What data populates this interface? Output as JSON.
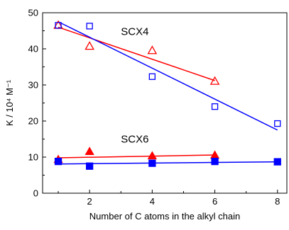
{
  "chart_data": {
    "type": "scatter",
    "xlabel": "Number of C atoms in the alkyl chain",
    "ylabel": "K / 10⁴ M⁻¹",
    "xlim": [
      0.5,
      8.3
    ],
    "ylim": [
      0,
      50
    ],
    "xticks": [
      2,
      4,
      6,
      8
    ],
    "yticks": [
      0,
      10,
      20,
      30,
      40,
      50
    ],
    "grid": false,
    "annotations": [
      {
        "text": "SCX4",
        "x": 3.0,
        "y": 43.8
      },
      {
        "text": "SCX6",
        "x": 3.0,
        "y": 14.0
      }
    ],
    "series": [
      {
        "group": "SCX4",
        "marker": "triangle",
        "filled": false,
        "color": "#ff0000",
        "x": [
          1,
          2,
          4,
          6
        ],
        "y": [
          46.5,
          40.7,
          39.5,
          31.0
        ],
        "fit": {
          "x1": 1,
          "y1": 46.0,
          "x2": 6,
          "y2": 31.2
        }
      },
      {
        "group": "SCX4",
        "marker": "square",
        "filled": false,
        "color": "#0000ff",
        "x": [
          1,
          2,
          4,
          6,
          8
        ],
        "y": [
          46.5,
          46.3,
          32.3,
          24.0,
          19.3
        ],
        "fit": {
          "x1": 1,
          "y1": 47.5,
          "x2": 8,
          "y2": 17.5
        }
      },
      {
        "group": "SCX6",
        "marker": "triangle",
        "filled": true,
        "color": "#ff0000",
        "x": [
          1,
          2,
          4,
          6
        ],
        "y": [
          9.3,
          11.5,
          10.3,
          10.5
        ],
        "fit": {
          "x1": 1,
          "y1": 9.8,
          "x2": 6,
          "y2": 10.6
        }
      },
      {
        "group": "SCX6",
        "marker": "square",
        "filled": true,
        "color": "#0000ff",
        "x": [
          1,
          2,
          4,
          6,
          8
        ],
        "y": [
          8.8,
          7.5,
          8.3,
          8.8,
          8.7
        ],
        "fit": {
          "x1": 1,
          "y1": 8.1,
          "x2": 8,
          "y2": 8.7
        }
      }
    ]
  }
}
